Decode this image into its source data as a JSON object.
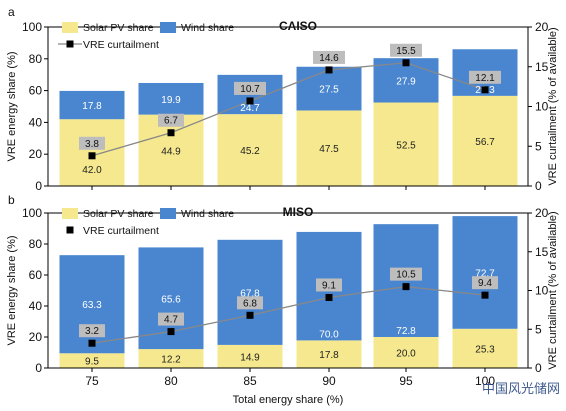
{
  "colors": {
    "solar": "#f5e88e",
    "wind": "#4a86cf",
    "curtailment_line": "#888888",
    "marker": "#000000",
    "label_box": "#bdbdbd",
    "wind_label": "#ffffff",
    "solar_label": "#222222"
  },
  "chart_data": [
    {
      "panel_letter": "a",
      "title": "CAISO",
      "type": "bar",
      "stacked": true,
      "xlabel": "",
      "ylabel": "VRE energy share (%)",
      "y2label": "VRE curtailment (% of available)",
      "categories": [
        "75",
        "80",
        "85",
        "90",
        "95",
        "100"
      ],
      "ylim": [
        0,
        100
      ],
      "yticks": [
        "0",
        "20",
        "40",
        "60",
        "80",
        "100"
      ],
      "y2lim": [
        0,
        20
      ],
      "y2ticks": [
        "0",
        "5",
        "10",
        "15",
        "20"
      ],
      "series": [
        {
          "name": "Solar PV share",
          "values": [
            42.0,
            44.9,
            45.2,
            47.5,
            52.5,
            56.7
          ],
          "labels": [
            "42.0",
            "44.9",
            "45.2",
            "47.5",
            "52.5",
            "56.7"
          ]
        },
        {
          "name": "Wind share",
          "values": [
            17.8,
            19.9,
            24.7,
            27.5,
            27.9,
            29.3
          ],
          "labels": [
            "17.8",
            "19.9",
            "24.7",
            "27.5",
            "27.9",
            "29.3"
          ]
        }
      ],
      "line_series": {
        "name": "VRE curtailment",
        "values": [
          3.8,
          6.7,
          10.7,
          14.6,
          15.5,
          12.1
        ],
        "labels": [
          "3.8",
          "6.7",
          "10.7",
          "14.6",
          "15.5",
          "12.1"
        ]
      },
      "legend": "top-left",
      "grid": false
    },
    {
      "panel_letter": "b",
      "title": "MISO",
      "type": "bar",
      "stacked": true,
      "xlabel": "Total energy share (%)",
      "ylabel": "VRE energy share (%)",
      "y2label": "VRE curtailment (% of available)",
      "categories": [
        "75",
        "80",
        "85",
        "90",
        "95",
        "100"
      ],
      "ylim": [
        0,
        100
      ],
      "yticks": [
        "0",
        "20",
        "40",
        "60",
        "80",
        "100"
      ],
      "y2lim": [
        0,
        20
      ],
      "y2ticks": [
        "0",
        "5",
        "10",
        "15",
        "20"
      ],
      "series": [
        {
          "name": "Solar PV share",
          "values": [
            9.5,
            12.2,
            14.9,
            17.8,
            20.0,
            25.3
          ],
          "labels": [
            "9.5",
            "12.2",
            "14.9",
            "17.8",
            "20.0",
            "25.3"
          ]
        },
        {
          "name": "Wind share",
          "values": [
            63.3,
            65.6,
            67.8,
            70.0,
            72.8,
            72.7
          ],
          "labels": [
            "63.3",
            "65.6",
            "67.8",
            "70.0",
            "72.8",
            "72.7"
          ]
        }
      ],
      "line_series": {
        "name": "VRE curtailment",
        "values": [
          3.2,
          4.7,
          6.8,
          9.1,
          10.5,
          9.4
        ],
        "labels": [
          "3.2",
          "4.7",
          "6.8",
          "9.1",
          "10.5",
          "9.4"
        ]
      },
      "legend": "top-left",
      "grid": false
    }
  ],
  "watermark": {
    "text": "中国风光储网"
  }
}
